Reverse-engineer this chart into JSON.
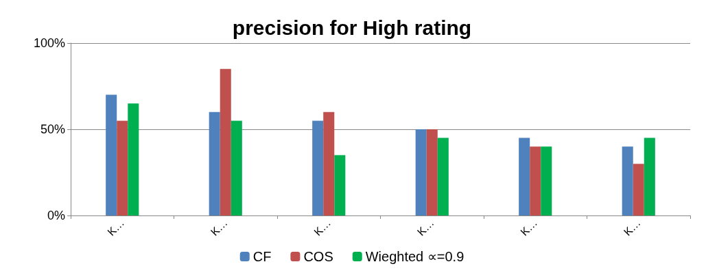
{
  "chart_data": {
    "type": "bar",
    "title": "precision for High rating",
    "categories": [
      "K…",
      "K…",
      "K…",
      "K…",
      "K…",
      "K…"
    ],
    "series": [
      {
        "name": "CF",
        "color": "#4f81bd",
        "values": [
          70,
          60,
          55,
          50,
          45,
          40
        ]
      },
      {
        "name": "COS",
        "color": "#c0504d",
        "values": [
          55,
          85,
          60,
          50,
          40,
          30
        ]
      },
      {
        "name": "Wieghted ∝=0.9",
        "color": "#00b050",
        "values": [
          65,
          55,
          35,
          45,
          40,
          45
        ]
      }
    ],
    "ylim": [
      0,
      100
    ],
    "yticks": [
      {
        "value": 0,
        "label": "0%"
      },
      {
        "value": 50,
        "label": "50%"
      },
      {
        "value": 100,
        "label": "100%"
      }
    ],
    "grid": "y",
    "legend": "bottom"
  }
}
